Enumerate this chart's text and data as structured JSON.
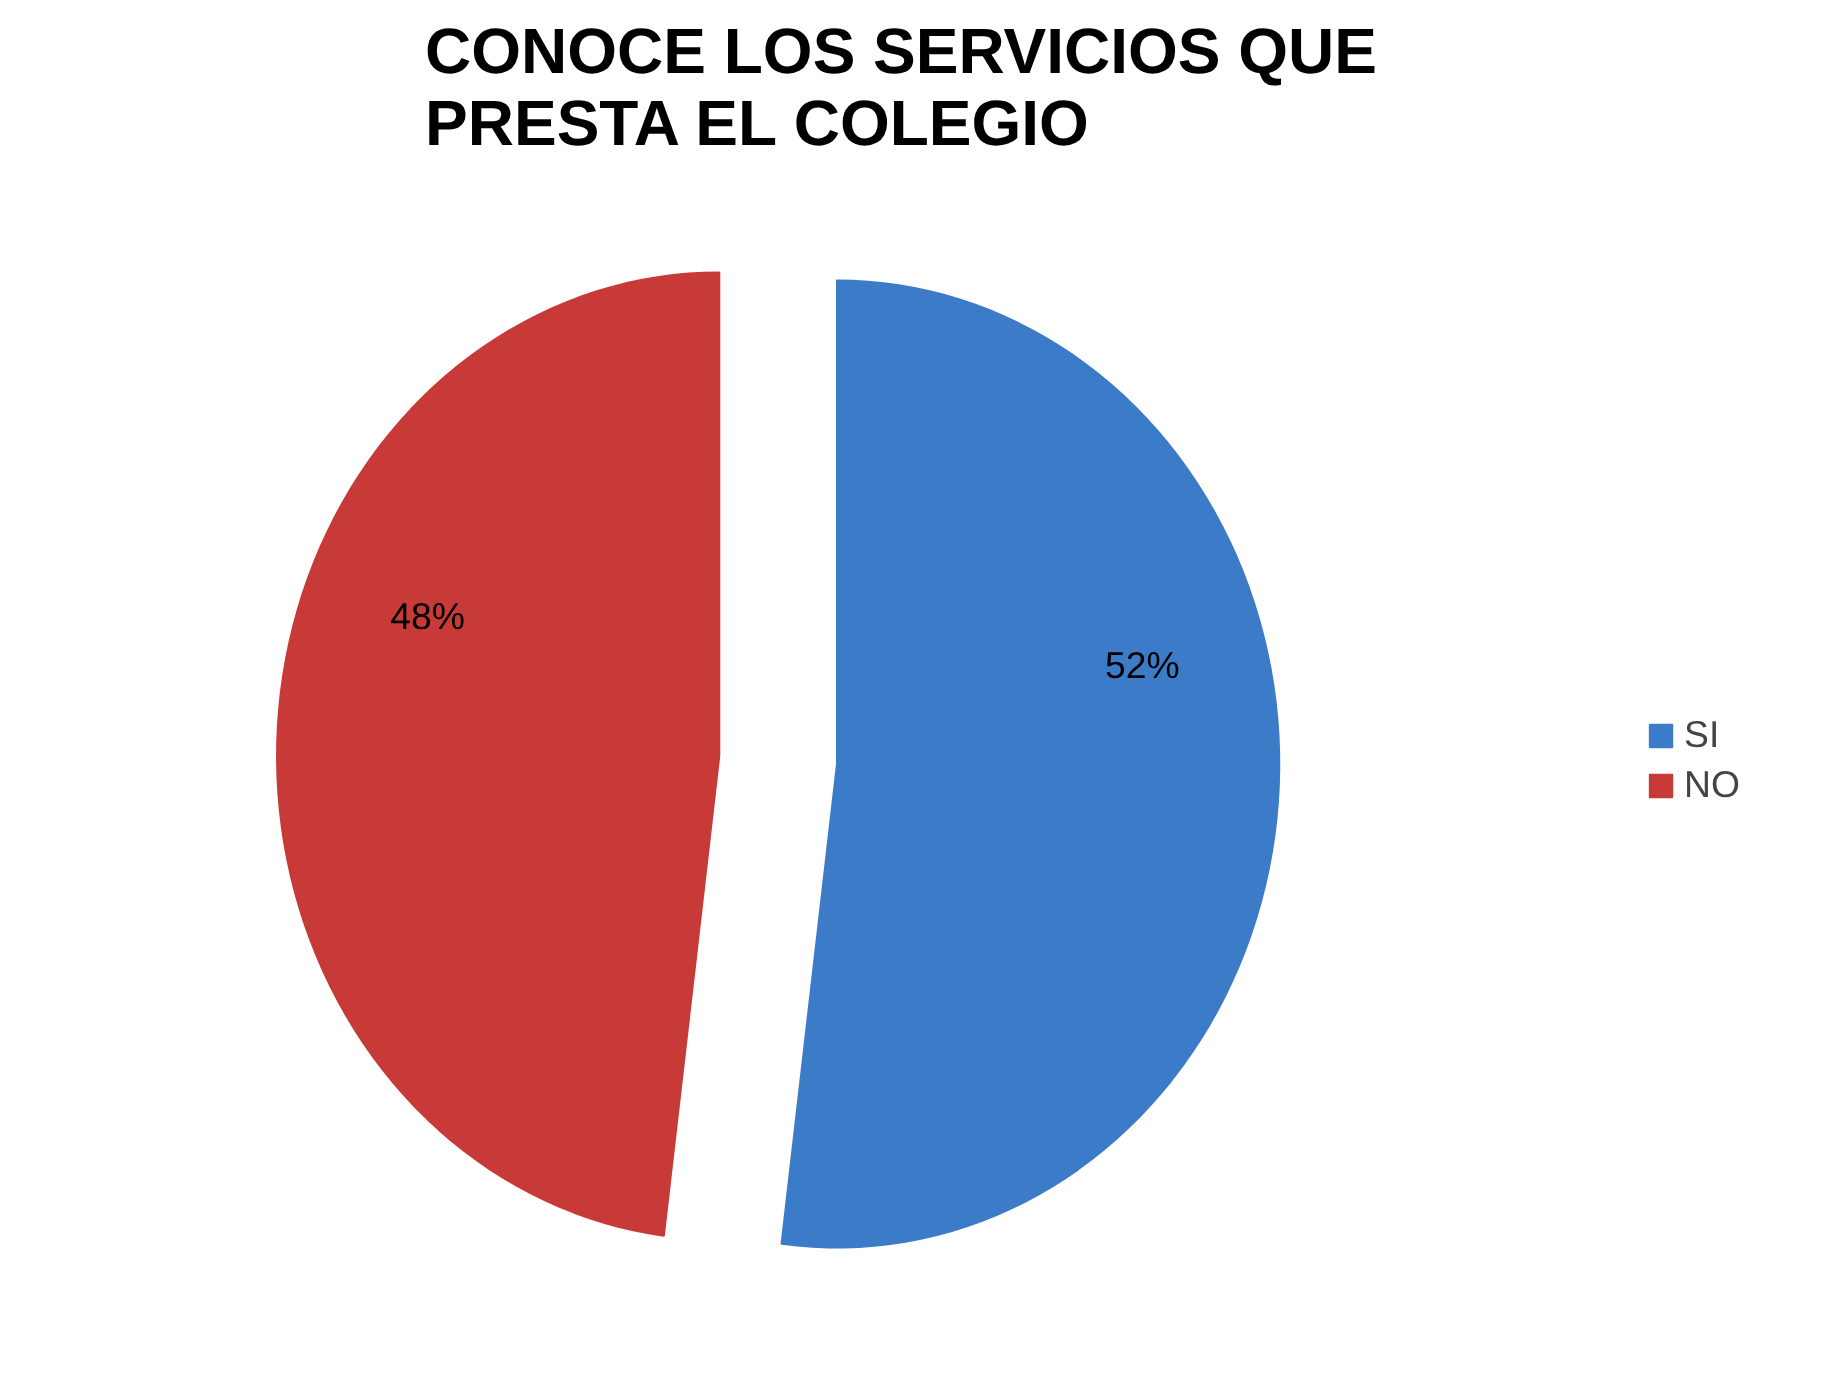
{
  "chart_data": {
    "type": "pie",
    "title": "CONOCE LOS SERVICIOS QUE PRESTA EL COLEGIO",
    "categories": [
      "SI",
      "NO"
    ],
    "values": [
      52,
      48
    ],
    "colors": [
      "#3c7bc8",
      "#c73a37"
    ],
    "value_labels": [
      "52%",
      "48%"
    ],
    "legend": "right"
  }
}
